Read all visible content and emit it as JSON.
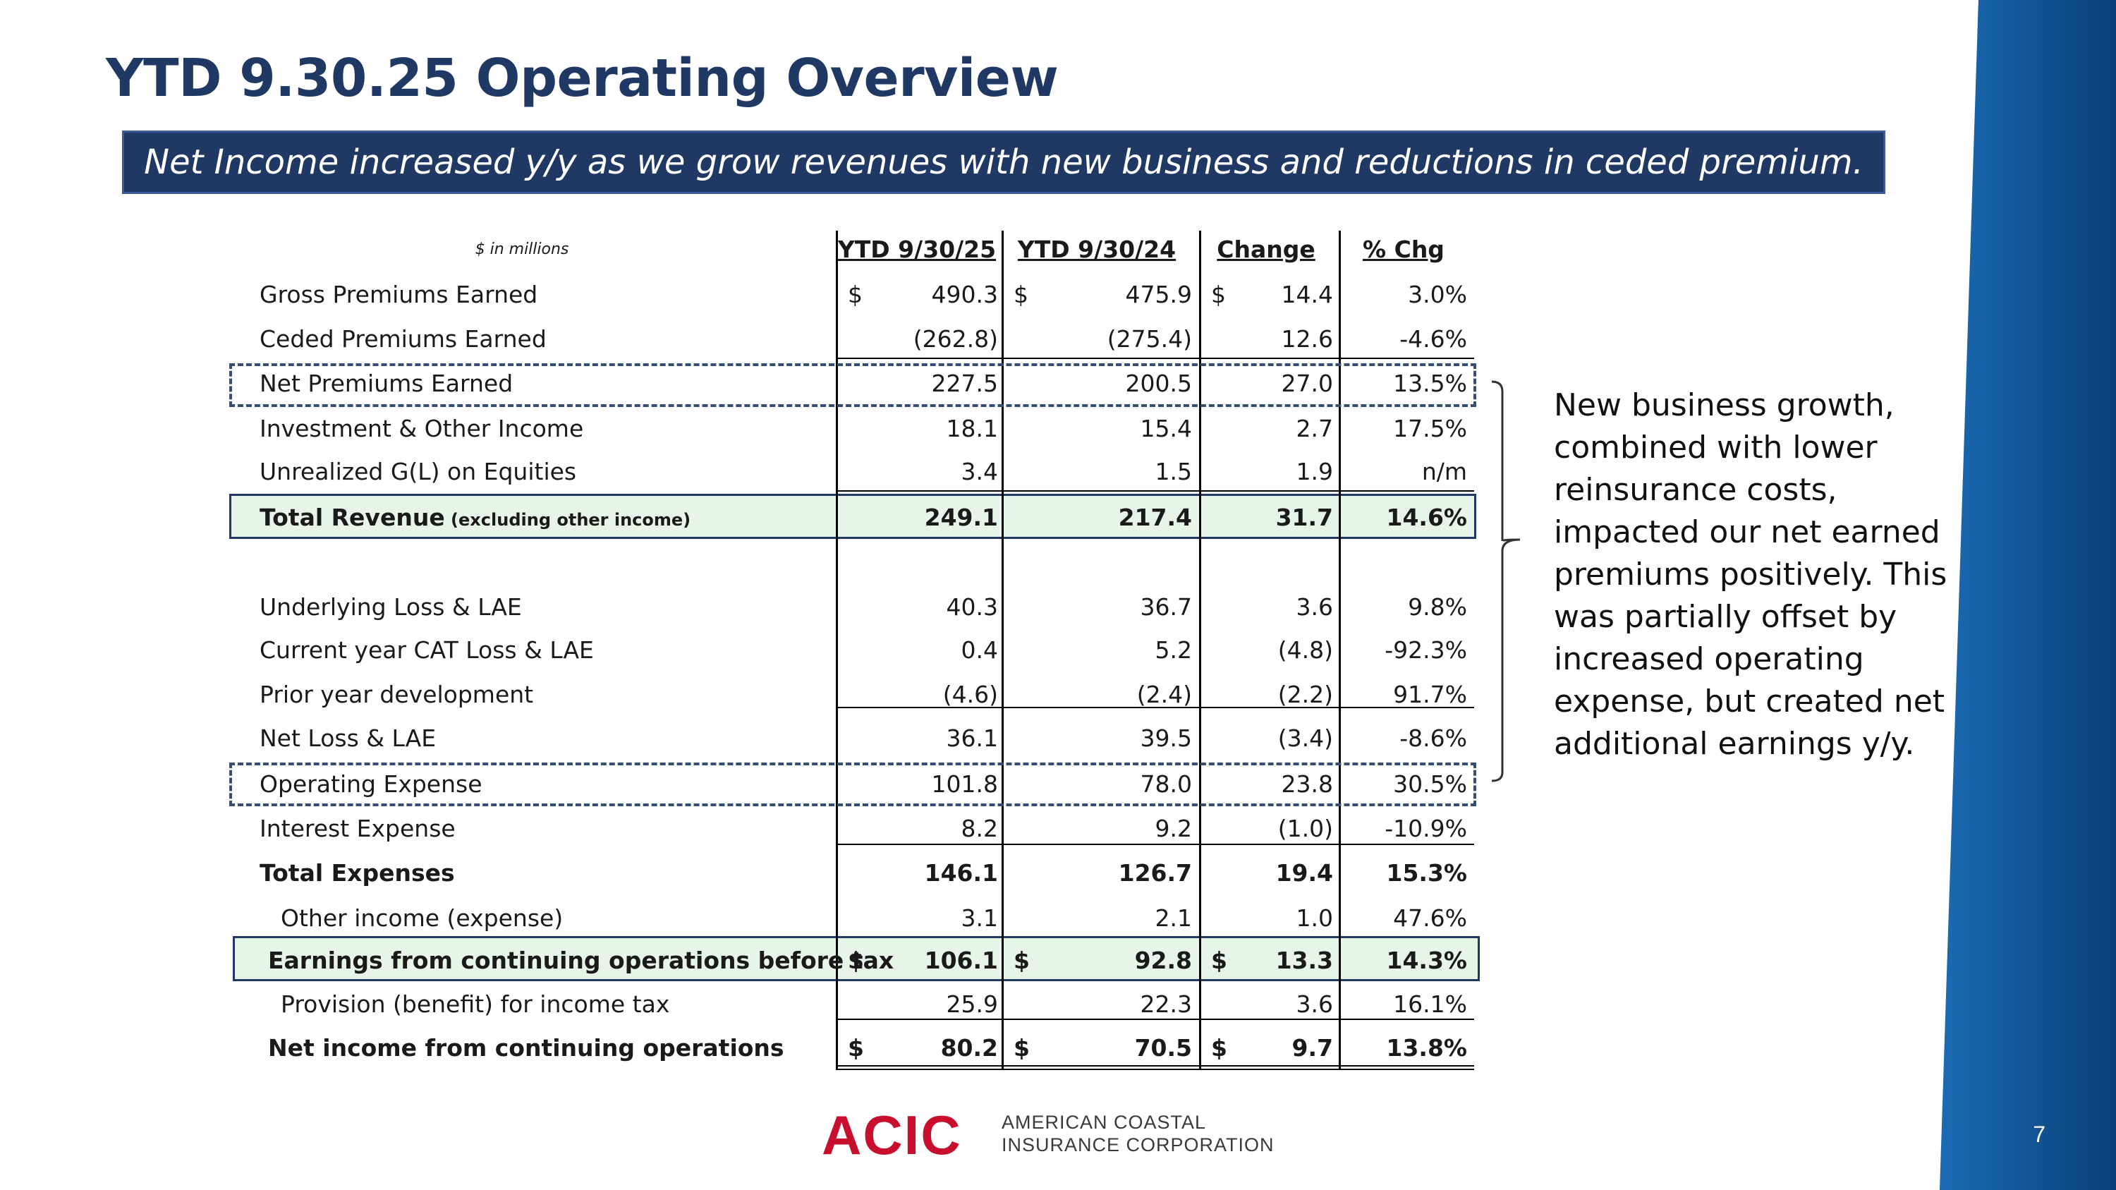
{
  "title": "YTD 9.30.25 Operating Overview",
  "banner": "Net Income increased y/y as we grow revenues with new business and reductions in ceded premium.",
  "table": {
    "units": "$ in millions",
    "headers": [
      "YTD 9/30/25",
      "YTD 9/30/24",
      "Change",
      "% Chg"
    ],
    "rows": [
      {
        "label": "Gross Premiums Earned",
        "c1": "490.3",
        "c2": "475.9",
        "c3": "14.4",
        "c4": "3.0%",
        "dollar": "$"
      },
      {
        "label": "Ceded Premiums Earned",
        "c1": "(262.8)",
        "c2": "(275.4)",
        "c3": "12.6",
        "c4": "-4.6%"
      },
      {
        "label": "Net Premiums Earned",
        "c1": "227.5",
        "c2": "200.5",
        "c3": "27.0",
        "c4": "13.5%"
      },
      {
        "label": "Investment & Other Income",
        "c1": "18.1",
        "c2": "15.4",
        "c3": "2.7",
        "c4": "17.5%"
      },
      {
        "label": "Unrealized G(L) on Equities",
        "c1": "3.4",
        "c2": "1.5",
        "c3": "1.9",
        "c4": "n/m"
      },
      {
        "label": "Total Revenue",
        "sublabel": "(excluding other income)",
        "c1": "249.1",
        "c2": "217.4",
        "c3": "31.7",
        "c4": "14.6%"
      },
      {
        "label": "Underlying Loss & LAE",
        "c1": "40.3",
        "c2": "36.7",
        "c3": "3.6",
        "c4": "9.8%"
      },
      {
        "label": "Current year CAT Loss & LAE",
        "c1": "0.4",
        "c2": "5.2",
        "c3": "(4.8)",
        "c4": "-92.3%"
      },
      {
        "label": "Prior year development",
        "c1": "(4.6)",
        "c2": "(2.4)",
        "c3": "(2.2)",
        "c4": "91.7%"
      },
      {
        "label": "Net Loss & LAE",
        "c1": "36.1",
        "c2": "39.5",
        "c3": "(3.4)",
        "c4": "-8.6%"
      },
      {
        "label": "Operating Expense",
        "c1": "101.8",
        "c2": "78.0",
        "c3": "23.8",
        "c4": "30.5%"
      },
      {
        "label": "Interest Expense",
        "c1": "8.2",
        "c2": "9.2",
        "c3": "(1.0)",
        "c4": "-10.9%"
      },
      {
        "label": "Total Expenses",
        "c1": "146.1",
        "c2": "126.7",
        "c3": "19.4",
        "c4": "15.3%"
      },
      {
        "label": "Other income (expense)",
        "c1": "3.1",
        "c2": "2.1",
        "c3": "1.0",
        "c4": "47.6%"
      },
      {
        "label": "Earnings from continuing operations before tax",
        "c1": "106.1",
        "c2": "92.8",
        "c3": "13.3",
        "c4": "14.3%",
        "dollar": "$"
      },
      {
        "label": "Provision (benefit) for income tax",
        "c1": "25.9",
        "c2": "22.3",
        "c3": "3.6",
        "c4": "16.1%"
      },
      {
        "label": "Net income from continuing operations",
        "c1": "80.2",
        "c2": "70.5",
        "c3": "9.7",
        "c4": "13.8%",
        "dollar": "$"
      }
    ]
  },
  "note": "New business growth, combined with lower reinsurance costs, impacted our net earned premiums positively. This was partially offset by increased operating expense, but created net additional earnings y/y.",
  "logo": {
    "mark": "ACIC",
    "company_line1": "AMERICAN COASTAL",
    "company_line2": "INSURANCE CORPORATION"
  },
  "page_number": "7",
  "colors": {
    "title": "#1f3864",
    "banner": "#203864",
    "highlight": "#e6f5e8",
    "band_dark": "#0a4a8a",
    "band_light": "#1b6bb3",
    "logo_red": "#c8102e"
  }
}
